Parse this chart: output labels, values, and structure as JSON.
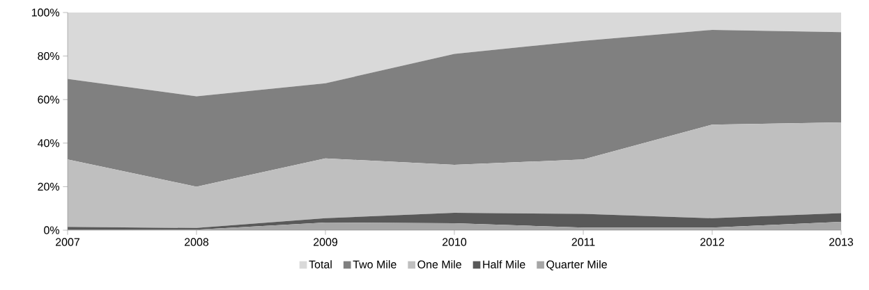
{
  "chart_data": {
    "type": "area",
    "stacked": true,
    "x": [
      2007,
      2008,
      2009,
      2010,
      2011,
      2012,
      2013
    ],
    "xlim": [
      2007,
      2013
    ],
    "xticks": [
      2007,
      2008,
      2009,
      2010,
      2011,
      2012,
      2013
    ],
    "ylim": [
      0,
      100
    ],
    "yticks": [
      {
        "value": 0,
        "label": "0%"
      },
      {
        "value": 20,
        "label": "20%"
      },
      {
        "value": 40,
        "label": "40%"
      },
      {
        "value": 60,
        "label": "60%"
      },
      {
        "value": 80,
        "label": "80%"
      },
      {
        "value": 100,
        "label": "100%"
      }
    ],
    "legend": "bottom",
    "grid": false,
    "series": [
      {
        "name": "Quarter Mile",
        "color": "#a6a6a6",
        "values": [
          0.3,
          0.2,
          3.5,
          3.2,
          1.2,
          1.2,
          3.8
        ]
      },
      {
        "name": "Half Mile",
        "color": "#595959",
        "values": [
          1.2,
          0.8,
          2,
          4.8,
          6.3,
          4.3,
          4
        ]
      },
      {
        "name": "One Mile",
        "color": "#bfbfbf",
        "values": [
          31,
          19,
          27.5,
          22,
          25,
          43,
          41.7
        ]
      },
      {
        "name": "Two Mile",
        "color": "#808080",
        "values": [
          37,
          41.5,
          34.5,
          51,
          54.5,
          43.5,
          41.5
        ]
      },
      {
        "name": "Total",
        "color": "#d9d9d9",
        "values": [
          30.5,
          38.5,
          32.5,
          19,
          13,
          8,
          9
        ]
      }
    ]
  }
}
